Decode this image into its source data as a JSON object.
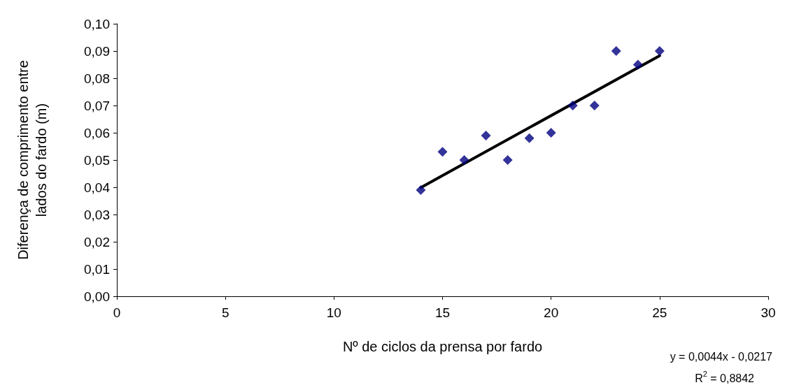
{
  "chart_data": {
    "type": "scatter",
    "xlabel": "Nº de ciclos da prensa por fardo",
    "ylabel": "Diferença de comprimento entre\nlados do fardo (m)",
    "x": [
      14,
      15,
      16,
      17,
      18,
      19,
      20,
      21,
      22,
      23,
      24,
      25
    ],
    "series": [
      {
        "color": "#000080",
        "values": [
          0.039,
          0.053,
          0.05,
          0.059,
          0.05,
          0.058,
          0.06,
          0.07,
          0.07,
          0.09,
          0.085,
          0.09
        ]
      },
      {
        "type": "line",
        "color": "#000000",
        "marker": "none",
        "x": [
          14,
          25
        ],
        "values": [
          0.0399,
          0.0883
        ]
      }
    ],
    "xlim": [
      0,
      30
    ],
    "xticks": [
      0,
      5,
      10,
      15,
      20,
      25,
      30
    ],
    "ylim": [
      0,
      0.1
    ],
    "yticks": [
      {
        "value": 0,
        "label": "0,00"
      },
      {
        "value": 0.01,
        "label": "0,01"
      },
      {
        "value": 0.02,
        "label": "0,02"
      },
      {
        "value": 0.03,
        "label": "0,03"
      },
      {
        "value": 0.04,
        "label": "0,04"
      },
      {
        "value": 0.05,
        "label": "0,05"
      },
      {
        "value": 0.06,
        "label": "0,06"
      },
      {
        "value": 0.07,
        "label": "0,07"
      },
      {
        "value": 0.08,
        "label": "0,08"
      },
      {
        "value": 0.09,
        "label": "0,09"
      },
      {
        "value": 0.1,
        "label": "0,10"
      }
    ],
    "annotations": [
      "y = 0,0044x - 0,0217",
      "R$^{2}$ = 0,8842"
    ],
    "marker": "diamond",
    "grid": false
  }
}
